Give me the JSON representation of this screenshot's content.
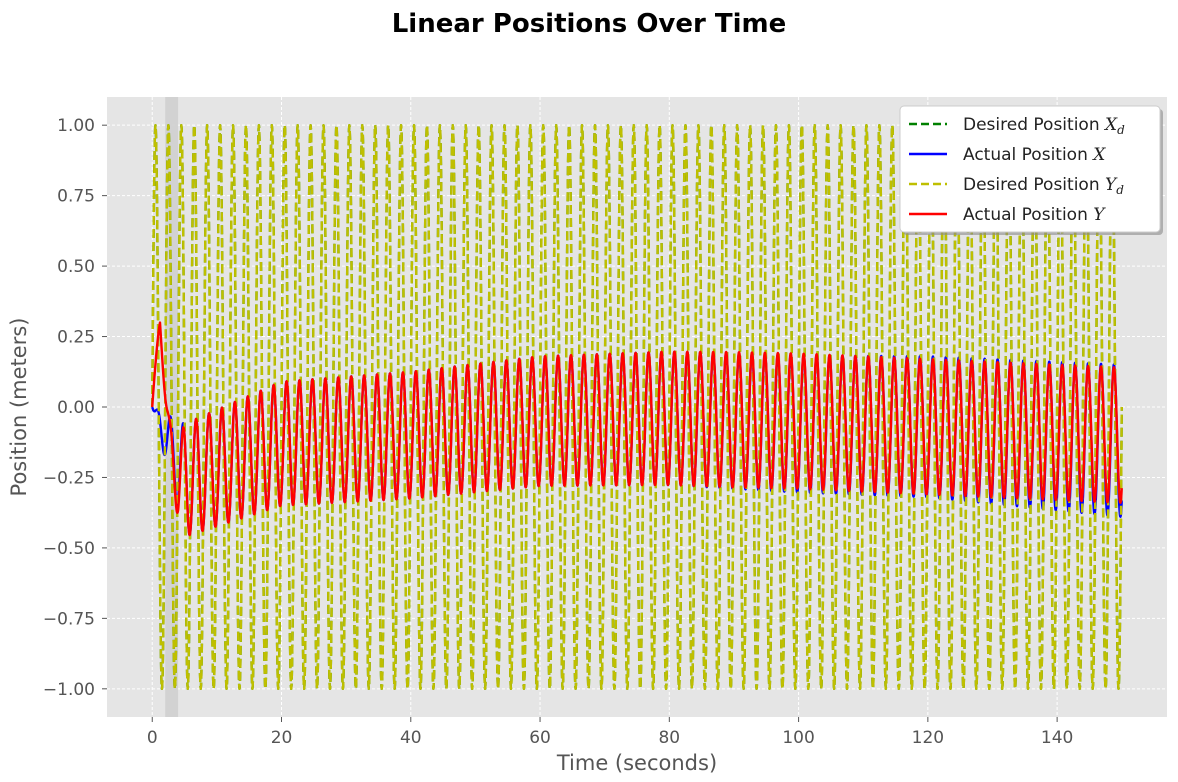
{
  "chart_data": {
    "type": "line",
    "title": "Linear Positions Over Time",
    "xlabel": "Time (seconds)",
    "ylabel": "Position (meters)",
    "xlim": [
      -7,
      157
    ],
    "ylim": [
      -1.1,
      1.1
    ],
    "grid": true,
    "legend_position": "top-right",
    "x_ticks": [
      0,
      20,
      40,
      60,
      80,
      100,
      120,
      140
    ],
    "x_tick_labels": [
      "0",
      "20",
      "40",
      "60",
      "80",
      "100",
      "120",
      "140"
    ],
    "y_ticks": [
      1.0,
      0.75,
      0.5,
      0.25,
      0.0,
      -0.25,
      -0.5,
      -0.75,
      -1.0
    ],
    "y_tick_labels": [
      "1.00",
      "0.75",
      "0.50",
      "0.25",
      "0.00",
      "−0.25",
      "−0.50",
      "−0.75",
      "−1.00"
    ],
    "highlight_band": {
      "x_start": 2.0,
      "x_end": 4.0
    },
    "series": [
      {
        "name": "Desired Position $X_d$",
        "legend_main": "Desired Position ",
        "legend_var": "X",
        "legend_sub": "d",
        "color": "#008000",
        "style": "dashed",
        "signal": "sine",
        "amplitude": 1.0,
        "period": 2.0,
        "phase": 0.0,
        "t_start": 0,
        "t_end": 150
      },
      {
        "name": "Actual Position $X$",
        "legend_main": "Actual Position ",
        "legend_var": "X",
        "legend_sub": "",
        "color": "#0000ff",
        "style": "solid",
        "signal": "tracking_response",
        "amplitude_points": [
          [
            0,
            0.0
          ],
          [
            5,
            0.2
          ],
          [
            20,
            0.22
          ],
          [
            60,
            0.23
          ],
          [
            90,
            0.24
          ],
          [
            120,
            0.25
          ],
          [
            150,
            0.27
          ]
        ],
        "center_points": [
          [
            0,
            0.0
          ],
          [
            5,
            -0.26
          ],
          [
            20,
            -0.13
          ],
          [
            40,
            -0.1
          ],
          [
            60,
            -0.05
          ],
          [
            80,
            -0.04
          ],
          [
            100,
            -0.06
          ],
          [
            120,
            -0.07
          ],
          [
            150,
            -0.12
          ]
        ],
        "period": 2.0,
        "t_start": 0,
        "t_end": 150
      },
      {
        "name": "Desired Position $Y_d$",
        "legend_main": "Desired Position ",
        "legend_var": "Y",
        "legend_sub": "d",
        "color": "#bfbf00",
        "style": "dashed",
        "signal": "sine",
        "amplitude": 1.0,
        "period": 2.0,
        "phase": 0.0,
        "t_start": 0,
        "t_end": 150
      },
      {
        "name": "Actual Position $Y$",
        "legend_main": "Actual Position ",
        "legend_var": "Y",
        "legend_sub": "",
        "color": "#ff0000",
        "style": "solid",
        "signal": "tracking_response",
        "amplitude_points": [
          [
            0,
            0.0
          ],
          [
            5,
            0.2
          ],
          [
            20,
            0.22
          ],
          [
            60,
            0.23
          ],
          [
            90,
            0.24
          ],
          [
            120,
            0.24
          ],
          [
            150,
            0.24
          ]
        ],
        "center_points": [
          [
            0,
            0.0
          ],
          [
            5,
            -0.26
          ],
          [
            20,
            -0.13
          ],
          [
            40,
            -0.1
          ],
          [
            60,
            -0.05
          ],
          [
            80,
            -0.04
          ],
          [
            100,
            -0.05
          ],
          [
            120,
            -0.07
          ],
          [
            150,
            -0.1
          ]
        ],
        "transient_points": [
          [
            0,
            0.0
          ],
          [
            1.2,
            0.41
          ],
          [
            2.4,
            0.05
          ],
          [
            3.3,
            -0.28
          ],
          [
            4.0,
            -0.5
          ],
          [
            5.0,
            -0.4
          ]
        ],
        "period": 2.0,
        "t_start": 0,
        "t_end": 150
      }
    ]
  }
}
